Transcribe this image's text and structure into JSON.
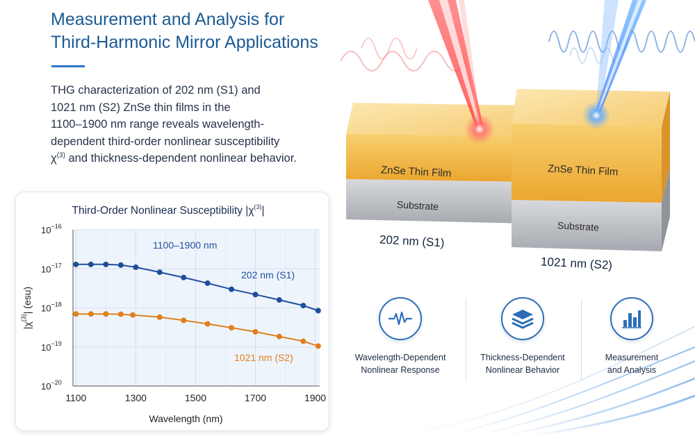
{
  "header": {
    "title_line1": "Measurement and Analysis for",
    "title_line2": "Third-Harmonic Mirror Applications",
    "desc_line1": "THG characterization of 202 nm (S1) and",
    "desc_line2": "1021 nm (S2) ZnSe thin films in the",
    "desc_line3": "1100–1900 nm range reveals wavelength-",
    "desc_line4": "dependent third-order nonlinear susceptibility",
    "desc_chi": "χ",
    "desc_chi_sup": "(3)",
    "desc_line5_rest": " and thickness-dependent nonlinear behavior."
  },
  "samples": {
    "s1": {
      "film": "ZnSe Thin Film",
      "substrate": "Substrate",
      "label": "202 nm (S1)"
    },
    "s2": {
      "film": "ZnSe Thin Film",
      "substrate": "Substrate",
      "label": "1021 nm (S2)"
    }
  },
  "features": [
    {
      "icon": "waveform-icon",
      "line1": "Wavelength-Dependent",
      "line2": "Nonlinear Response"
    },
    {
      "icon": "layers-icon",
      "line1": "Thickness-Dependent",
      "line2": "Nonlinear Behavior"
    },
    {
      "icon": "bar-chart-icon",
      "line1": "Measurement",
      "line2": "and Analysis"
    }
  ],
  "colors": {
    "accent": "#1b5a94",
    "series_s1": "#1f4f9c",
    "series_s2": "#e07f1c",
    "film": "#f0b53a",
    "substrate": "#b9bcc2"
  },
  "chart_data": {
    "type": "line",
    "title_prefix": "Third-Order Nonlinear Susceptibility |χ",
    "title_sup": "(3)",
    "title_suffix": "|",
    "ylabel_prefix": "|χ",
    "ylabel_sup": "(3)",
    "ylabel_suffix": "| (esu)",
    "xlabel": "Wavelength (nm)",
    "annotation": "1100–1900 nm",
    "y_scale": "log",
    "xlim": [
      1090,
      1915
    ],
    "ylim": [
      1e-20,
      1e-16
    ],
    "xticks": [
      1100,
      1300,
      1500,
      1700,
      1900
    ],
    "yticks": [
      {
        "base": "10",
        "exp": "−16"
      },
      {
        "base": "10",
        "exp": "−17"
      },
      {
        "base": "10",
        "exp": "−18"
      },
      {
        "base": "10",
        "exp": "−19"
      },
      {
        "base": "10",
        "exp": "−20"
      }
    ],
    "grid": true,
    "series": [
      {
        "name": "202 nm (S1)",
        "color": "#1f4f9c",
        "x": [
          1100,
          1150,
          1200,
          1250,
          1300,
          1380,
          1460,
          1540,
          1620,
          1700,
          1780,
          1860,
          1910
        ],
        "y": [
          1.3e-17,
          1.3e-17,
          1.3e-17,
          1.25e-17,
          1.1e-17,
          8.2e-18,
          6e-18,
          4.3e-18,
          3e-18,
          2.2e-18,
          1.6e-18,
          1.15e-18,
          8.5e-19
        ]
      },
      {
        "name": "1021 nm (S2)",
        "color": "#e07f1c",
        "x": [
          1100,
          1150,
          1200,
          1250,
          1290,
          1380,
          1460,
          1540,
          1620,
          1700,
          1780,
          1860,
          1910
        ],
        "y": [
          7e-19,
          7e-19,
          7e-19,
          6.9e-19,
          6.6e-19,
          5.8e-19,
          4.8e-19,
          3.9e-19,
          3.1e-19,
          2.45e-19,
          1.85e-19,
          1.4e-19,
          1.05e-19
        ]
      }
    ]
  }
}
